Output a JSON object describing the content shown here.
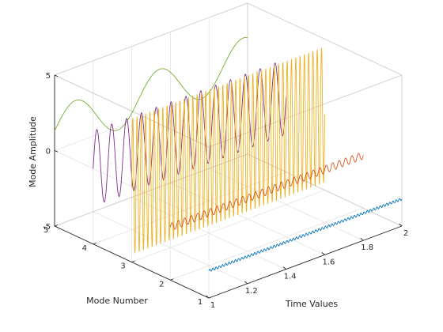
{
  "chart_data": {
    "type": "line",
    "view": "3d",
    "title": "",
    "xlabel": "Time Values",
    "ylabel": "Mode Number",
    "zlabel": "Mode Amplitude",
    "xlim": [
      1,
      2
    ],
    "ylim": [
      1,
      5
    ],
    "zlim": [
      -5,
      5
    ],
    "grid": true,
    "x_ticks": [
      {
        "value": 1,
        "label": "1"
      },
      {
        "value": 1.2,
        "label": "1.2"
      },
      {
        "value": 1.4,
        "label": "1.4"
      },
      {
        "value": 1.6,
        "label": "1.6"
      },
      {
        "value": 1.8,
        "label": "1.8"
      },
      {
        "value": 2,
        "label": "2"
      }
    ],
    "y_ticks": [
      {
        "value": 1,
        "label": "1"
      },
      {
        "value": 2,
        "label": "2"
      },
      {
        "value": 3,
        "label": "3"
      },
      {
        "value": 4,
        "label": "4"
      },
      {
        "value": 5,
        "label": "5"
      }
    ],
    "z_ticks": [
      {
        "value": -5,
        "label": "-5"
      },
      {
        "value": 0,
        "label": "0"
      },
      {
        "value": 5,
        "label": "5"
      }
    ],
    "series": [
      {
        "mode": 1,
        "x_start": 1,
        "x_end": 2,
        "offset": -3.2,
        "amplitude": 0.08,
        "cycles": 60,
        "color": "#0072BD"
      },
      {
        "mode": 2,
        "x_start": 1,
        "x_end": 2,
        "offset": -1.5,
        "amplitude": 0.25,
        "cycles": 30,
        "color": "#D95319"
      },
      {
        "mode": 3,
        "x_start": 1,
        "x_end": 2,
        "offset": 0,
        "amplitude": 4.5,
        "cycles": 45,
        "color": "#EDB120"
      },
      {
        "mode": 4,
        "x_start": 1,
        "x_end": 2,
        "offset": 0,
        "amplitude": 2.5,
        "cycles": 13,
        "color": "#7E2F8E"
      },
      {
        "mode": 5,
        "x_start": 1,
        "x_end": 2,
        "offset": 1.3,
        "amplitude": 1.5,
        "cycles": 2.3,
        "color": "#77AC30"
      }
    ]
  }
}
